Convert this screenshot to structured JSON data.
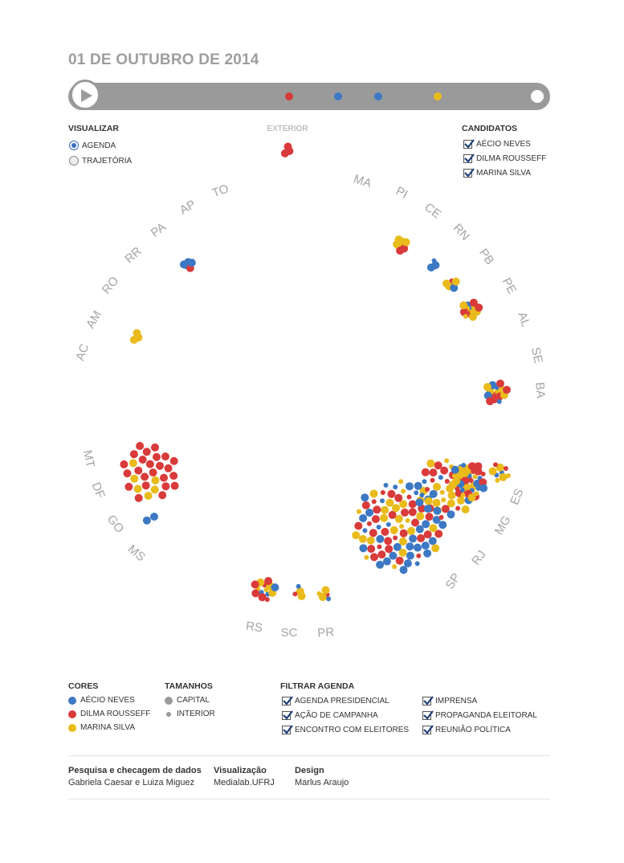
{
  "title": "01 DE OUTUBRO DE 2014",
  "colors": {
    "aecio": "#3d78c4",
    "dilma": "#d93a3a",
    "marina": "#e9bb1b",
    "gray": "#9a9a9a"
  },
  "timeline": {
    "markers": [
      "dilma",
      "aecio",
      "aecio",
      "marina"
    ]
  },
  "visualizar": {
    "heading": "VISUALIZAR",
    "options": [
      {
        "label": "AGENDA",
        "selected": true
      },
      {
        "label": "TRAJETÓRIA",
        "selected": false
      }
    ]
  },
  "candidatos": {
    "heading": "CANDIDATOS",
    "items": [
      {
        "label": "AÉCIO NEVES",
        "checked": true
      },
      {
        "label": "DILMA ROUSSEFF",
        "checked": true
      },
      {
        "label": "MARINA SILVA",
        "checked": true
      }
    ]
  },
  "exterior_label": "EXTERIOR",
  "states": [
    "AC",
    "AM",
    "RO",
    "RR",
    "PA",
    "AP",
    "TO",
    "MA",
    "PI",
    "CE",
    "RN",
    "PB",
    "PE",
    "AL",
    "SE",
    "BA",
    "MT",
    "DF",
    "GO",
    "MS",
    "RS",
    "SC",
    "PR",
    "SP",
    "RJ",
    "MG",
    "ES"
  ],
  "clusters": [
    {
      "region": "EXTERIOR",
      "aecio": 0,
      "dilma": 3,
      "marina": 0,
      "small": 0
    },
    {
      "region": "AP",
      "aecio": 4,
      "dilma": 1,
      "marina": 0,
      "small": 1
    },
    {
      "region": "AC",
      "aecio": 0,
      "dilma": 0,
      "marina": 3,
      "small": 0
    },
    {
      "region": "PI",
      "aecio": 0,
      "dilma": 2,
      "marina": 6,
      "small": 0
    },
    {
      "region": "CE",
      "aecio": 2,
      "dilma": 0,
      "marina": 0,
      "small": 1
    },
    {
      "region": "PB",
      "aecio": 1,
      "dilma": 0,
      "marina": 3,
      "small": 2
    },
    {
      "region": "PE",
      "aecio": 1,
      "dilma": 4,
      "marina": 7,
      "small": 3
    },
    {
      "region": "BA",
      "aecio": 2,
      "dilma": 5,
      "marina": 4,
      "small": 4
    },
    {
      "region": "MT",
      "aecio": 0,
      "dilma": 24,
      "marina": 6,
      "small": 0
    },
    {
      "region": "MS",
      "aecio": 2,
      "dilma": 0,
      "marina": 0,
      "small": 0
    },
    {
      "region": "RS",
      "aecio": 1,
      "dilma": 4,
      "marina": 3,
      "small": 6
    },
    {
      "region": "SC",
      "aecio": 0,
      "dilma": 0,
      "marina": 2,
      "small": 2
    },
    {
      "region": "PR",
      "aecio": 0,
      "dilma": 0,
      "marina": 2,
      "small": 3
    },
    {
      "region": "SP",
      "aecio": 24,
      "dilma": 26,
      "marina": 20,
      "small": 22
    },
    {
      "region": "RJ",
      "aecio": 8,
      "dilma": 10,
      "marina": 12,
      "small": 14
    },
    {
      "region": "MG",
      "aecio": 4,
      "dilma": 6,
      "marina": 8,
      "small": 16
    },
    {
      "region": "ES",
      "aecio": 0,
      "dilma": 0,
      "marina": 3,
      "small": 6
    }
  ],
  "cores": {
    "heading": "CORES",
    "items": [
      {
        "label": "AÉCIO NEVES",
        "color": "#3d78c4"
      },
      {
        "label": "DILMA ROUSSEFF",
        "color": "#d93a3a"
      },
      {
        "label": "MARINA SILVA",
        "color": "#e9bb1b"
      }
    ]
  },
  "tamanhos": {
    "heading": "TAMANHOS",
    "items": [
      {
        "label": "CAPITAL",
        "size": "large"
      },
      {
        "label": "INTERIOR",
        "size": "small"
      }
    ]
  },
  "filtrar": {
    "heading": "FILTRAR AGENDA",
    "items": [
      {
        "label": "AGENDA PRESIDENCIAL",
        "checked": true
      },
      {
        "label": "AÇÃO DE CAMPANHA",
        "checked": true
      },
      {
        "label": "ENCONTRO COM ELEITORES",
        "checked": true
      },
      {
        "label": "IMPRENSA",
        "checked": true
      },
      {
        "label": "PROPAGANDA ELEITORAL",
        "checked": true
      },
      {
        "label": "REUNIÃO POLÍTICA",
        "checked": true
      }
    ]
  },
  "credits": [
    {
      "heading": "Pesquisa e checagem de dados",
      "text": "Gabriela Caesar e Luiza Miguez"
    },
    {
      "heading": "Visualização",
      "text": "Medialab.UFRJ"
    },
    {
      "heading": "Design",
      "text": "Marlus Araujo"
    }
  ]
}
